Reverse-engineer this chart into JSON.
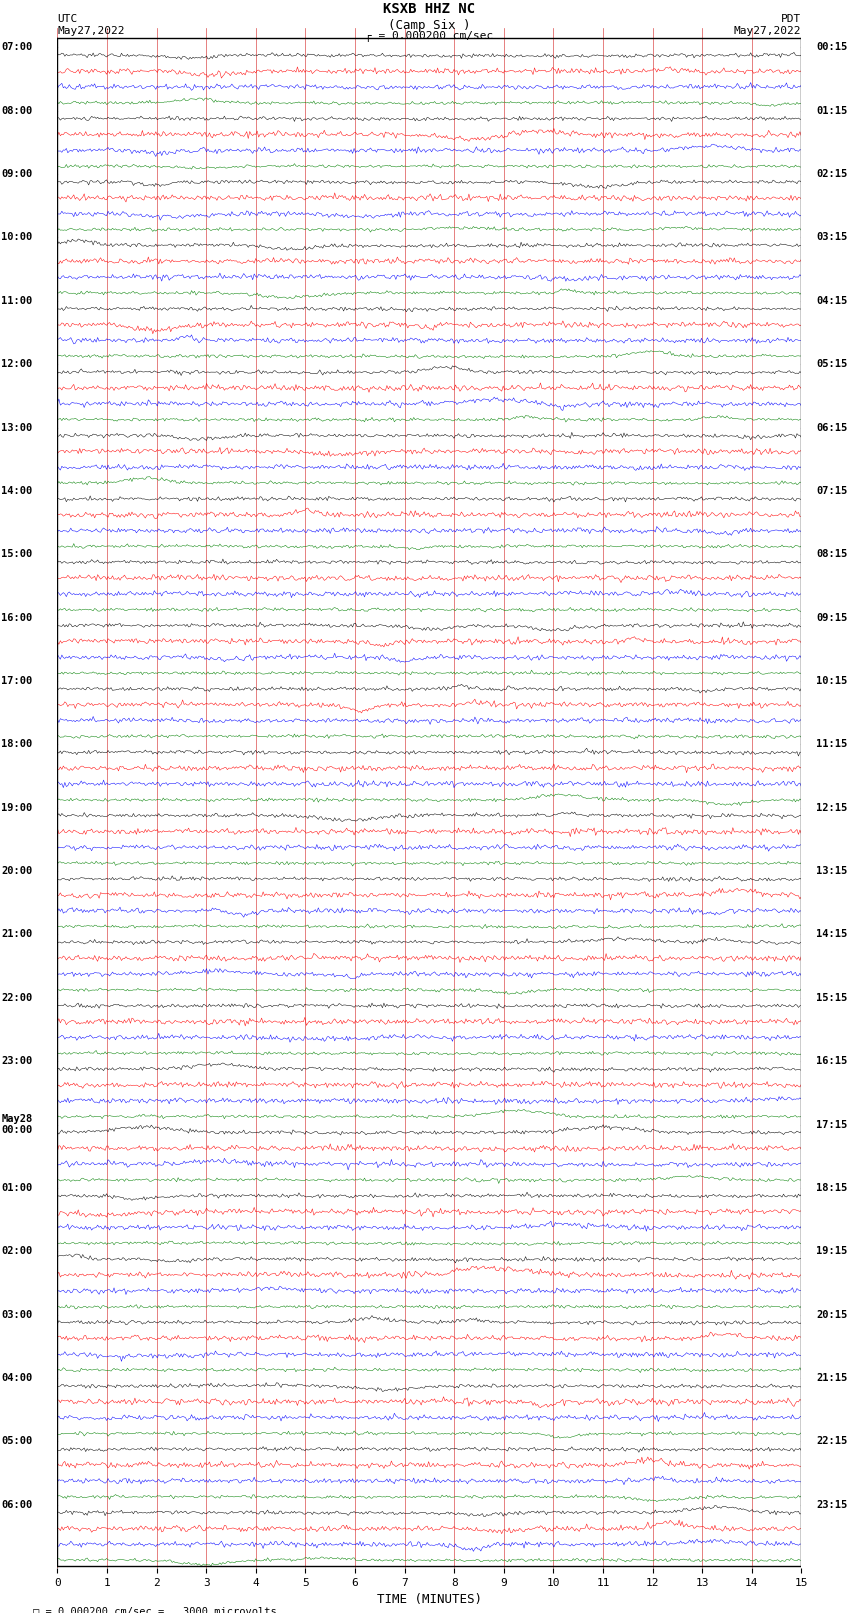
{
  "title_line1": "KSXB HHZ NC",
  "title_line2": "(Camp Six )",
  "scale_label": "\u00041 = 0.000200 cm/sec",
  "scale_text": "= 0.000200 cm/sec =   3000 microvolts",
  "xlabel": "TIME (MINUTES)",
  "left_header": "UTC\nMay27,2022",
  "right_header": "PDT\nMay27,2022",
  "utc_labels": [
    "07:00",
    "08:00",
    "09:00",
    "10:00",
    "11:00",
    "12:00",
    "13:00",
    "14:00",
    "15:00",
    "16:00",
    "17:00",
    "18:00",
    "19:00",
    "20:00",
    "21:00",
    "22:00",
    "23:00",
    "May28\n00:00",
    "01:00",
    "02:00",
    "03:00",
    "04:00",
    "05:00",
    "06:00"
  ],
  "pdt_labels": [
    "00:15",
    "01:15",
    "02:15",
    "03:15",
    "04:15",
    "05:15",
    "06:15",
    "07:15",
    "08:15",
    "09:15",
    "10:15",
    "11:15",
    "12:15",
    "13:15",
    "14:15",
    "15:15",
    "16:15",
    "17:15",
    "18:15",
    "19:15",
    "20:15",
    "21:15",
    "22:15",
    "23:15"
  ],
  "trace_colors": [
    "black",
    "red",
    "blue",
    "green"
  ],
  "num_hours": 24,
  "traces_per_hour": 4,
  "xmin": 0,
  "xmax": 15,
  "noise_seed": 42,
  "fig_width": 8.5,
  "fig_height": 16.13,
  "bg_color": "white",
  "grid_color": "#cc0000",
  "tick_color": "black"
}
